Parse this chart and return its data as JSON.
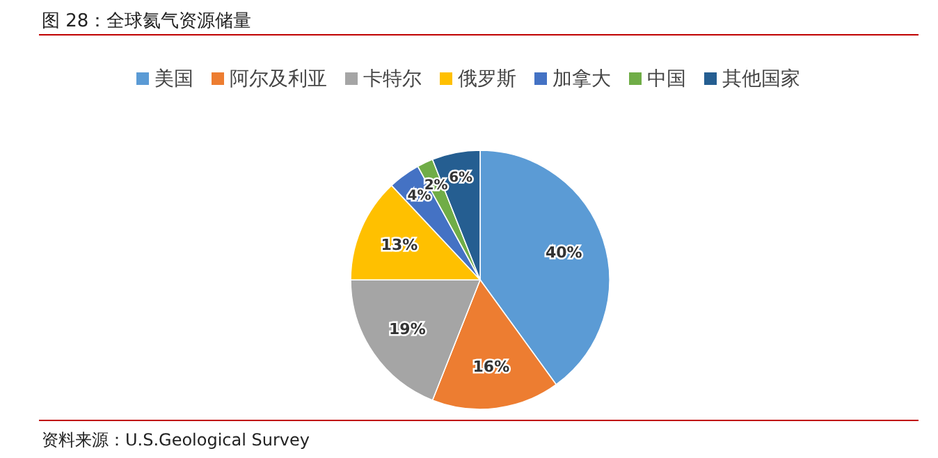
{
  "chart_data": {
    "type": "pie",
    "title": "图 28：全球氦气资源储量",
    "categories": [
      "美国",
      "阿尔及利亚",
      "卡特尔",
      "俄罗斯",
      "加拿大",
      "中国",
      "其他国家"
    ],
    "values": [
      40,
      16,
      19,
      13,
      4,
      2,
      6
    ],
    "value_labels": [
      "40%",
      "16%",
      "19%",
      "13%",
      "4%",
      "2%",
      "6%"
    ],
    "colors": [
      "#5b9bd5",
      "#ed7d31",
      "#a5a5a5",
      "#ffc000",
      "#4472c4",
      "#70ad47",
      "#255e91"
    ],
    "legend": "top",
    "annotations": [
      "资料来源：U.S.Geological Survey"
    ]
  }
}
